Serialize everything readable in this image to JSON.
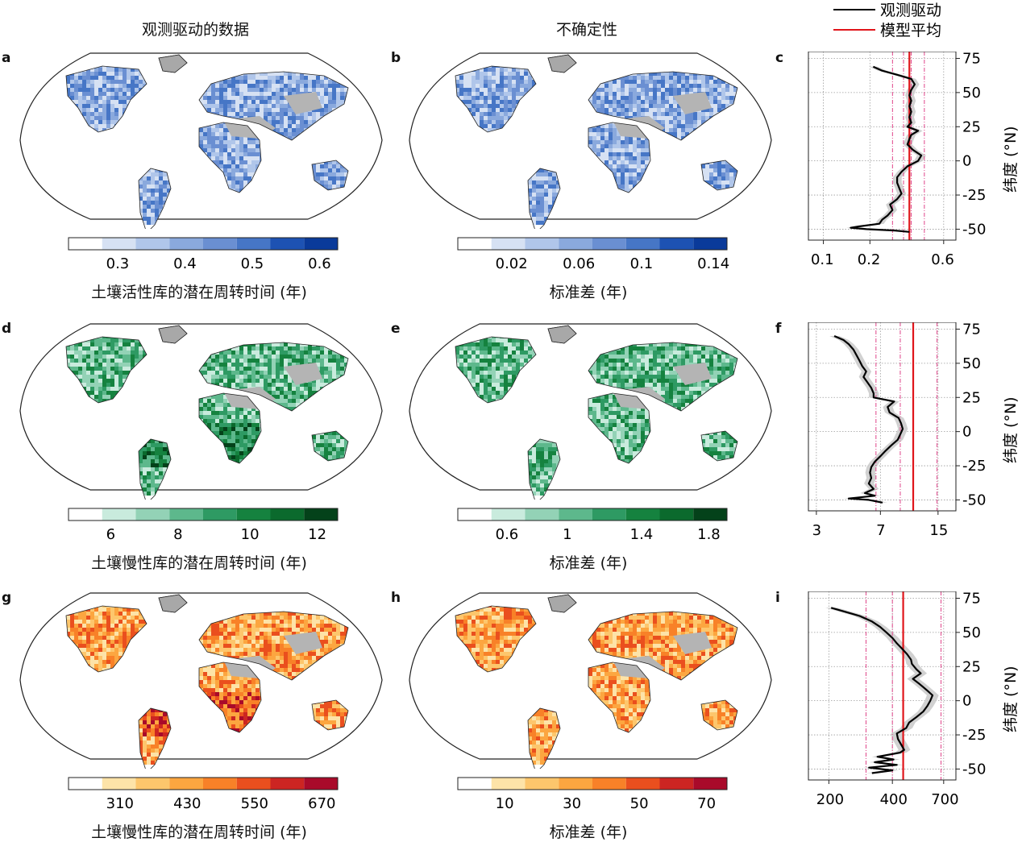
{
  "column_titles": [
    "观测驱动的数据",
    "不确定性"
  ],
  "legend": {
    "observed": "观测驱动",
    "model_mean": "模型平均"
  },
  "colors": {
    "observed": "#000000",
    "model_mean": "#e0151b",
    "model_members": "#e0458a",
    "mask": "#b4b4b4",
    "land_nodata": "#a8a8a8"
  },
  "rows": [
    {
      "maps": [
        {
          "panel": "a",
          "colormap": [
            "#ffffff",
            "#d6e1f3",
            "#b0c6ea",
            "#8aa9dd",
            "#6a8fd2",
            "#4676c6",
            "#1d52b3",
            "#0a3a9a"
          ],
          "ticks": [
            "0.3",
            "0.4",
            "0.5",
            "0.6"
          ],
          "label": "土壤活性库的潜在周转时间 (年)"
        },
        {
          "panel": "b",
          "colormap": [
            "#ffffff",
            "#d6e1f3",
            "#b0c6ea",
            "#8aa9dd",
            "#6a8fd2",
            "#4676c6",
            "#1d52b3",
            "#0a3a9a"
          ],
          "ticks": [
            "0.02",
            "0.06",
            "0.1",
            "0.14"
          ],
          "label": "标准差 (年)"
        }
      ],
      "profile": {
        "panel": "c",
        "scale": "log",
        "xlim": [
          0.08,
          0.72
        ],
        "xticks": [
          0.1,
          0.2,
          0.6
        ],
        "xticklabels": [
          "0.1",
          "0.2",
          "0.6"
        ],
        "yticks": [
          "75",
          "50",
          "25",
          "0",
          "-25",
          "-50"
        ],
        "ylabel": "纬度 (°N)",
        "model_mean": 0.36,
        "model_members": [
          0.28,
          0.33,
          0.37,
          0.45
        ],
        "series": [
          {
            "lat": 69,
            "v": 0.21
          },
          {
            "lat": 66,
            "v": 0.24
          },
          {
            "lat": 63,
            "v": 0.3
          },
          {
            "lat": 60,
            "v": 0.37
          },
          {
            "lat": 56,
            "v": 0.39
          },
          {
            "lat": 52,
            "v": 0.37
          },
          {
            "lat": 48,
            "v": 0.36
          },
          {
            "lat": 44,
            "v": 0.37
          },
          {
            "lat": 40,
            "v": 0.36
          },
          {
            "lat": 36,
            "v": 0.37
          },
          {
            "lat": 32,
            "v": 0.36
          },
          {
            "lat": 28,
            "v": 0.37
          },
          {
            "lat": 25,
            "v": 0.35
          },
          {
            "lat": 22,
            "v": 0.41
          },
          {
            "lat": 19,
            "v": 0.37
          },
          {
            "lat": 16,
            "v": 0.36
          },
          {
            "lat": 12,
            "v": 0.35
          },
          {
            "lat": 8,
            "v": 0.38
          },
          {
            "lat": 4,
            "v": 0.43
          },
          {
            "lat": 0,
            "v": 0.41
          },
          {
            "lat": -4,
            "v": 0.35
          },
          {
            "lat": -8,
            "v": 0.32
          },
          {
            "lat": -12,
            "v": 0.3
          },
          {
            "lat": -16,
            "v": 0.3
          },
          {
            "lat": -20,
            "v": 0.31
          },
          {
            "lat": -24,
            "v": 0.32
          },
          {
            "lat": -28,
            "v": 0.3
          },
          {
            "lat": -32,
            "v": 0.27
          },
          {
            "lat": -36,
            "v": 0.28
          },
          {
            "lat": -40,
            "v": 0.26
          },
          {
            "lat": -43,
            "v": 0.24
          },
          {
            "lat": -46,
            "v": 0.23
          },
          {
            "lat": -48,
            "v": 0.17
          },
          {
            "lat": -49,
            "v": 0.15
          },
          {
            "lat": -50,
            "v": 0.19
          },
          {
            "lat": -51,
            "v": 0.29
          },
          {
            "lat": -52,
            "v": 0.36
          }
        ]
      }
    },
    {
      "maps": [
        {
          "panel": "d",
          "colormap": [
            "#ffffff",
            "#c9ebdd",
            "#93d2b6",
            "#5db88c",
            "#2e9a63",
            "#15823f",
            "#0b6a2d",
            "#04421a"
          ],
          "ticks": [
            "6",
            "8",
            "10",
            "12"
          ],
          "label": "土壤慢性库的潜在周转时间 (年)"
        },
        {
          "panel": "e",
          "colormap": [
            "#ffffff",
            "#c9ebdd",
            "#93d2b6",
            "#5db88c",
            "#2e9a63",
            "#15823f",
            "#0b6a2d",
            "#04421a"
          ],
          "ticks": [
            "0.6",
            "1",
            "1.4",
            "1.8"
          ],
          "label": "标准差 (年)"
        }
      ],
      "profile": {
        "panel": "f",
        "scale": "log",
        "xlim": [
          2.7,
          19
        ],
        "xticks": [
          3,
          7,
          15
        ],
        "xticklabels": [
          "3",
          "7",
          "15"
        ],
        "yticks": [
          "75",
          "50",
          "25",
          "0",
          "-25",
          "-50"
        ],
        "ylabel": "纬度 (°N)",
        "model_mean": 10.8,
        "model_members": [
          6.6,
          9.1,
          14.8
        ],
        "series": [
          {
            "lat": 70,
            "v": 3.8
          },
          {
            "lat": 67,
            "v": 4.3
          },
          {
            "lat": 64,
            "v": 4.6
          },
          {
            "lat": 60,
            "v": 4.9
          },
          {
            "lat": 56,
            "v": 5.1
          },
          {
            "lat": 52,
            "v": 5.3
          },
          {
            "lat": 48,
            "v": 5.5
          },
          {
            "lat": 44,
            "v": 5.8
          },
          {
            "lat": 40,
            "v": 5.6
          },
          {
            "lat": 36,
            "v": 5.9
          },
          {
            "lat": 32,
            "v": 6.2
          },
          {
            "lat": 28,
            "v": 6.4
          },
          {
            "lat": 25,
            "v": 6.4
          },
          {
            "lat": 22,
            "v": 8.4
          },
          {
            "lat": 18,
            "v": 7.7
          },
          {
            "lat": 14,
            "v": 7.9
          },
          {
            "lat": 10,
            "v": 8.9
          },
          {
            "lat": 6,
            "v": 9.2
          },
          {
            "lat": 2,
            "v": 9.4
          },
          {
            "lat": -2,
            "v": 9.1
          },
          {
            "lat": -6,
            "v": 8.8
          },
          {
            "lat": -10,
            "v": 8.1
          },
          {
            "lat": -14,
            "v": 7.5
          },
          {
            "lat": -18,
            "v": 7.0
          },
          {
            "lat": -22,
            "v": 6.5
          },
          {
            "lat": -26,
            "v": 6.2
          },
          {
            "lat": -30,
            "v": 6.1
          },
          {
            "lat": -34,
            "v": 6.2
          },
          {
            "lat": -38,
            "v": 6.0
          },
          {
            "lat": -42,
            "v": 6.4
          },
          {
            "lat": -45,
            "v": 5.7
          },
          {
            "lat": -47,
            "v": 6.5
          },
          {
            "lat": -49,
            "v": 4.6
          },
          {
            "lat": -50,
            "v": 6.0
          },
          {
            "lat": -52,
            "v": 7.2
          }
        ]
      }
    },
    {
      "maps": [
        {
          "panel": "g",
          "colormap": [
            "#ffffff",
            "#fde3a8",
            "#fdc66c",
            "#fca640",
            "#f88128",
            "#ea4f1e",
            "#cc2522",
            "#a90a2a"
          ],
          "ticks": [
            "310",
            "430",
            "550",
            "670"
          ],
          "label": "土壤慢性库的潜在周转时间 (年)"
        },
        {
          "panel": "h",
          "colormap": [
            "#ffffff",
            "#fde3a8",
            "#fdc66c",
            "#fca640",
            "#f88128",
            "#ea4f1e",
            "#cc2522",
            "#a90a2a"
          ],
          "ticks": [
            "10",
            "30",
            "50",
            "70"
          ],
          "label": "标准差 (年)"
        }
      ],
      "profile": {
        "panel": "i",
        "scale": "log",
        "xlim": [
          160,
          800
        ],
        "xticks": [
          200,
          400,
          700
        ],
        "xticklabels": [
          "200",
          "400",
          "700"
        ],
        "yticks": [
          "75",
          "50",
          "25",
          "0",
          "-25",
          "-50"
        ],
        "ylabel": "纬度 (°N)",
        "model_mean": 450,
        "model_members": [
          300,
          400,
          680
        ],
        "series": [
          {
            "lat": 68,
            "v": 205
          },
          {
            "lat": 65,
            "v": 240
          },
          {
            "lat": 62,
            "v": 280
          },
          {
            "lat": 58,
            "v": 320
          },
          {
            "lat": 54,
            "v": 350
          },
          {
            "lat": 50,
            "v": 375
          },
          {
            "lat": 46,
            "v": 400
          },
          {
            "lat": 42,
            "v": 420
          },
          {
            "lat": 38,
            "v": 445
          },
          {
            "lat": 34,
            "v": 470
          },
          {
            "lat": 30,
            "v": 490
          },
          {
            "lat": 27,
            "v": 495
          },
          {
            "lat": 23,
            "v": 520
          },
          {
            "lat": 20,
            "v": 545
          },
          {
            "lat": 16,
            "v": 500
          },
          {
            "lat": 12,
            "v": 540
          },
          {
            "lat": 8,
            "v": 580
          },
          {
            "lat": 4,
            "v": 620
          },
          {
            "lat": 0,
            "v": 605
          },
          {
            "lat": -4,
            "v": 585
          },
          {
            "lat": -8,
            "v": 560
          },
          {
            "lat": -12,
            "v": 520
          },
          {
            "lat": -16,
            "v": 480
          },
          {
            "lat": -20,
            "v": 465
          },
          {
            "lat": -24,
            "v": 420
          },
          {
            "lat": -28,
            "v": 425
          },
          {
            "lat": -32,
            "v": 440
          },
          {
            "lat": -36,
            "v": 455
          },
          {
            "lat": -38,
            "v": 435
          },
          {
            "lat": -41,
            "v": 340
          },
          {
            "lat": -43,
            "v": 405
          },
          {
            "lat": -45,
            "v": 330
          },
          {
            "lat": -47,
            "v": 420
          },
          {
            "lat": -49,
            "v": 310
          },
          {
            "lat": -51,
            "v": 400
          },
          {
            "lat": -53,
            "v": 320
          }
        ]
      }
    }
  ]
}
